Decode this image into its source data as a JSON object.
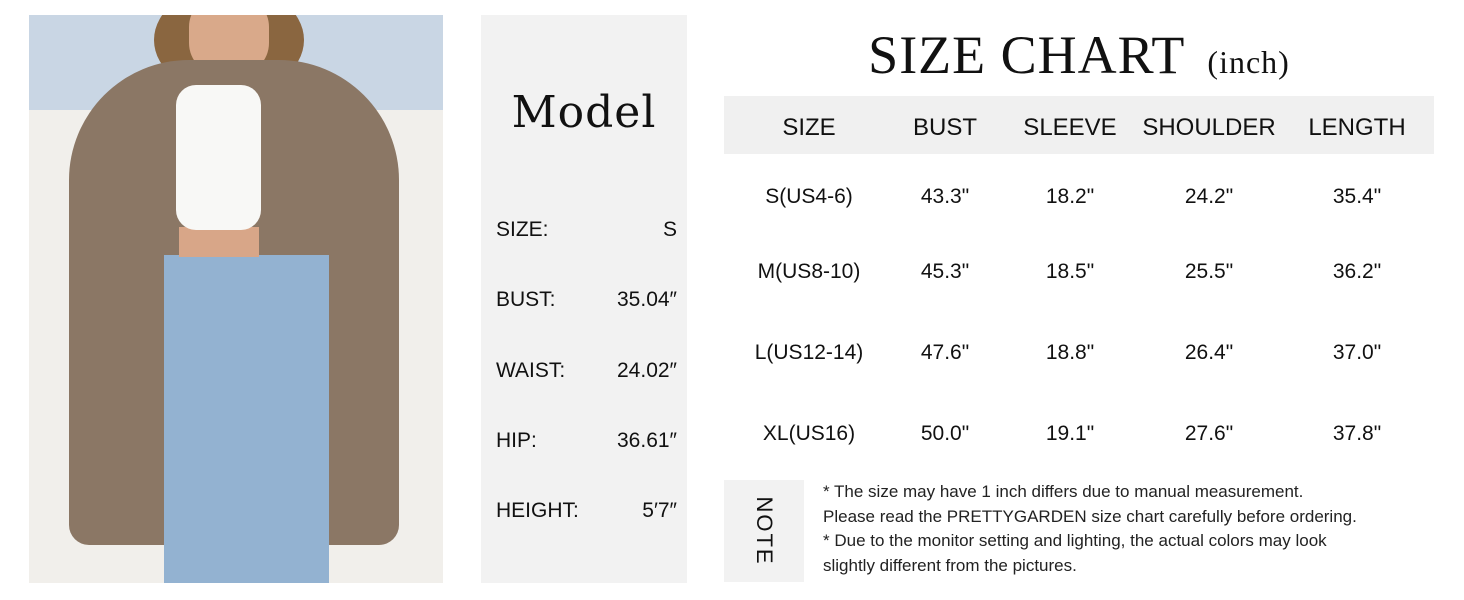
{
  "model": {
    "title": "Model",
    "rows": [
      {
        "label": "SIZE:",
        "value": "S"
      },
      {
        "label": "BUST:",
        "value": "35.04″"
      },
      {
        "label": "WAIST:",
        "value": "24.02″"
      },
      {
        "label": "HIP:",
        "value": "36.61″"
      },
      {
        "label": "HEIGHT:",
        "value": "5′7″"
      }
    ]
  },
  "size_chart": {
    "title": "SIZE CHART",
    "unit": "(inch)",
    "headers": [
      "SIZE",
      "BUST",
      "SLEEVE",
      "SHOULDER",
      "LENGTH"
    ],
    "rows": [
      [
        "S(US4-6)",
        "43.3\"",
        "18.2\"",
        "24.2\"",
        "35.4\""
      ],
      [
        "M(US8-10)",
        "45.3\"",
        "18.5\"",
        "25.5\"",
        "36.2\""
      ],
      [
        "L(US12-14)",
        "47.6\"",
        "18.8\"",
        "26.4\"",
        "37.0\""
      ],
      [
        "XL(US16)",
        "50.0\"",
        "19.1\"",
        "27.6\"",
        "37.8\""
      ]
    ]
  },
  "note": {
    "label": "NOTE",
    "lines": [
      "* The size may have 1 inch differs due to manual measurement.",
      "Please read the PRETTYGARDEN size chart carefully before ordering.",
      "* Due to the monitor setting and lighting, the actual colors may look",
      "slightly different from the pictures."
    ]
  },
  "colors": {
    "panel_bg": "#f2f2f2",
    "cardigan": "#8b7765"
  }
}
